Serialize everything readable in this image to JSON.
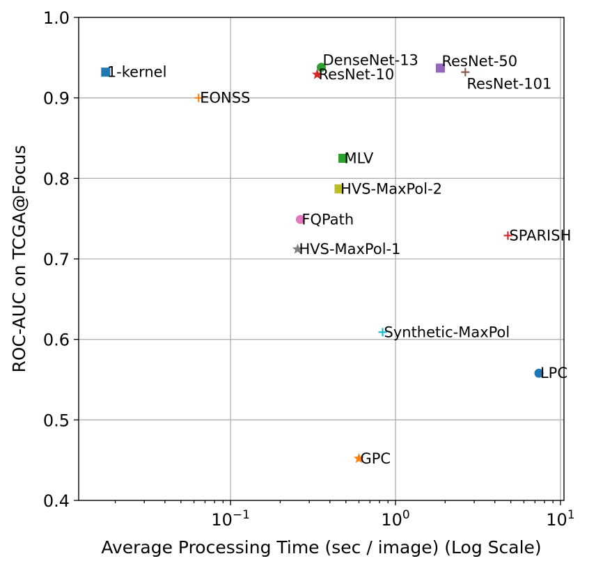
{
  "chart_data": {
    "type": "scatter",
    "title": "",
    "xlabel": "Average Processing Time (sec / image) (Log Scale)",
    "ylabel": "ROC-AUC on TCGA@Focus",
    "xscale": "log",
    "xlim": [
      0.012,
      10.5
    ],
    "ylim": [
      0.4,
      1.0
    ],
    "grid": true,
    "legend": "none",
    "x_ticks": [
      {
        "value": 0.1,
        "base": "10",
        "exp": "−1"
      },
      {
        "value": 1,
        "base": "10",
        "exp": "0"
      },
      {
        "value": 10,
        "base": "10",
        "exp": "1"
      }
    ],
    "y_ticks": [
      {
        "value": 0.4,
        "label": "0.4"
      },
      {
        "value": 0.5,
        "label": "0.5"
      },
      {
        "value": 0.6,
        "label": "0.6"
      },
      {
        "value": 0.7,
        "label": "0.7"
      },
      {
        "value": 0.8,
        "label": "0.8"
      },
      {
        "value": 0.9,
        "label": "0.9"
      },
      {
        "value": 1.0,
        "label": "1.0"
      }
    ],
    "points": [
      {
        "name": "1-kernel",
        "x": 0.0175,
        "y": 0.932,
        "marker": "square",
        "color": "#1f77b4",
        "label_anchor": "right"
      },
      {
        "name": "EONSS",
        "x": 0.064,
        "y": 0.9,
        "marker": "plus",
        "color": "#ff7f0e",
        "label_anchor": "right"
      },
      {
        "name": "DenseNet-13",
        "x": 0.355,
        "y": 0.938,
        "marker": "circle",
        "color": "#2ca02c",
        "label_anchor": "right-up"
      },
      {
        "name": "ResNet-10",
        "x": 0.335,
        "y": 0.929,
        "marker": "star",
        "color": "#d62728",
        "label_anchor": "right"
      },
      {
        "name": "ResNet-50",
        "x": 1.87,
        "y": 0.937,
        "marker": "square",
        "color": "#9467bd",
        "label_anchor": "right-up"
      },
      {
        "name": "ResNet-101",
        "x": 2.65,
        "y": 0.932,
        "marker": "plus",
        "color": "#8c564b",
        "label_anchor": "right-down"
      },
      {
        "name": "MLV",
        "x": 0.48,
        "y": 0.825,
        "marker": "square",
        "color": "#2ca02c",
        "label_anchor": "right"
      },
      {
        "name": "HVS-MaxPol-2",
        "x": 0.455,
        "y": 0.787,
        "marker": "square",
        "color": "#bcbd22",
        "label_anchor": "right"
      },
      {
        "name": "FQPath",
        "x": 0.265,
        "y": 0.749,
        "marker": "circle",
        "color": "#e377c2",
        "label_anchor": "right"
      },
      {
        "name": "SPARISH",
        "x": 4.8,
        "y": 0.729,
        "marker": "plus",
        "color": "#d62728",
        "label_anchor": "right"
      },
      {
        "name": "HVS-MaxPol-1",
        "x": 0.255,
        "y": 0.712,
        "marker": "star",
        "color": "#7f7f7f",
        "label_anchor": "right"
      },
      {
        "name": "Synthetic-MaxPol",
        "x": 0.835,
        "y": 0.609,
        "marker": "plus",
        "color": "#17becf",
        "label_anchor": "right"
      },
      {
        "name": "LPC",
        "x": 7.4,
        "y": 0.558,
        "marker": "circle",
        "color": "#1f77b4",
        "label_anchor": "right"
      },
      {
        "name": "GPC",
        "x": 0.6,
        "y": 0.452,
        "marker": "star",
        "color": "#ff7f0e",
        "label_anchor": "right"
      }
    ]
  }
}
